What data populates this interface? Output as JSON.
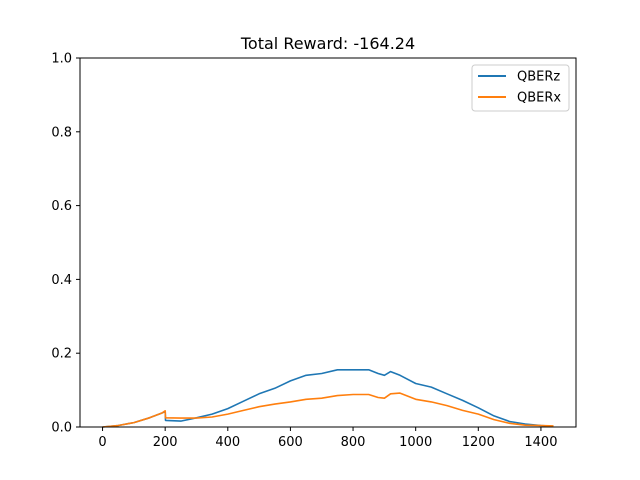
{
  "chart_data": {
    "type": "line",
    "title": "Total Reward: -164.24",
    "xlabel": "",
    "ylabel": "",
    "xlim": [
      -72,
      1512
    ],
    "ylim": [
      0,
      1.0
    ],
    "xticks": [
      0,
      200,
      400,
      600,
      800,
      1000,
      1200,
      1400
    ],
    "xtick_labels": [
      "0",
      "200",
      "400",
      "600",
      "800",
      "1000",
      "1200",
      "1400"
    ],
    "yticks": [
      0.0,
      0.2,
      0.4,
      0.6,
      0.8,
      1.0
    ],
    "ytick_labels": [
      "0.0",
      "0.2",
      "0.4",
      "0.6",
      "0.8",
      "1.0"
    ],
    "grid": false,
    "legend_position": "top-right",
    "x": [
      0,
      50,
      100,
      150,
      190,
      200,
      201,
      250,
      300,
      350,
      400,
      450,
      500,
      550,
      600,
      650,
      700,
      750,
      800,
      850,
      880,
      900,
      920,
      950,
      1000,
      1050,
      1100,
      1150,
      1200,
      1250,
      1300,
      1350,
      1400,
      1440
    ],
    "series": [
      {
        "name": "QBERz",
        "color": "#1f77b4",
        "values": [
          0.0,
          0.004,
          0.012,
          0.025,
          0.038,
          0.042,
          0.018,
          0.016,
          0.025,
          0.035,
          0.05,
          0.07,
          0.09,
          0.105,
          0.125,
          0.14,
          0.145,
          0.155,
          0.155,
          0.155,
          0.145,
          0.14,
          0.15,
          0.14,
          0.118,
          0.108,
          0.09,
          0.072,
          0.052,
          0.03,
          0.015,
          0.008,
          0.004,
          0.002
        ]
      },
      {
        "name": "QBERx",
        "color": "#ff7f0e",
        "values": [
          0.0,
          0.004,
          0.012,
          0.025,
          0.038,
          0.044,
          0.025,
          0.024,
          0.024,
          0.027,
          0.035,
          0.045,
          0.055,
          0.062,
          0.068,
          0.075,
          0.078,
          0.085,
          0.088,
          0.088,
          0.08,
          0.078,
          0.09,
          0.092,
          0.075,
          0.068,
          0.058,
          0.045,
          0.035,
          0.02,
          0.01,
          0.005,
          0.004,
          0.003
        ]
      }
    ]
  }
}
